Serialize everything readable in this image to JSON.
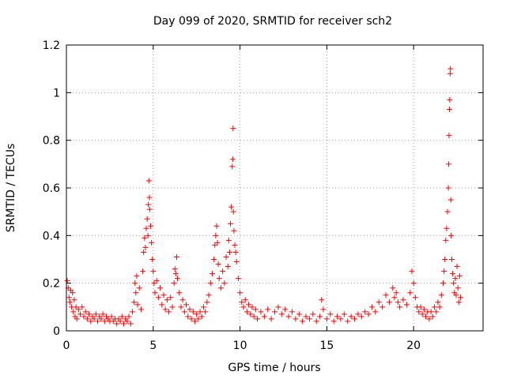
{
  "chart_data": {
    "type": "scatter",
    "title": "Day 099 of 2020, SRMTID for receiver sch2",
    "xlabel": "GPS time / hours",
    "ylabel": "SRMTID / TECUs",
    "xlim": [
      0,
      24
    ],
    "ylim": [
      0,
      1.2
    ],
    "xticks": [
      0,
      5,
      10,
      15,
      20
    ],
    "xtick_labels": [
      "0",
      "5",
      "10",
      "15",
      "20"
    ],
    "yticks": [
      0,
      0.2,
      0.4,
      0.6,
      0.8,
      1,
      1.2
    ],
    "ytick_labels": [
      "0",
      "0.2",
      "0.4",
      "0.6",
      "0.8",
      "1",
      "1.2"
    ],
    "grid": true,
    "marker": "+",
    "color": "#ff0000",
    "series": [
      {
        "name": "sch2",
        "points": [
          [
            0.05,
            0.21
          ],
          [
            0.1,
            0.18
          ],
          [
            0.15,
            0.14
          ],
          [
            0.2,
            0.12
          ],
          [
            0.25,
            0.17
          ],
          [
            0.3,
            0.1
          ],
          [
            0.35,
            0.16
          ],
          [
            0.4,
            0.08
          ],
          [
            0.45,
            0.13
          ],
          [
            0.5,
            0.06
          ],
          [
            0.55,
            0.1
          ],
          [
            0.6,
            0.05
          ],
          [
            0.7,
            0.09
          ],
          [
            0.8,
            0.07
          ],
          [
            0.9,
            0.1
          ],
          [
            1.0,
            0.06
          ],
          [
            1.1,
            0.08
          ],
          [
            1.2,
            0.05
          ],
          [
            1.3,
            0.07
          ],
          [
            1.4,
            0.04
          ],
          [
            1.5,
            0.06
          ],
          [
            1.6,
            0.05
          ],
          [
            1.7,
            0.07
          ],
          [
            1.8,
            0.04
          ],
          [
            1.9,
            0.06
          ],
          [
            2.0,
            0.05
          ],
          [
            2.1,
            0.07
          ],
          [
            2.2,
            0.04
          ],
          [
            2.3,
            0.06
          ],
          [
            2.4,
            0.05
          ],
          [
            2.5,
            0.04
          ],
          [
            2.6,
            0.06
          ],
          [
            2.7,
            0.04
          ],
          [
            2.8,
            0.05
          ],
          [
            2.9,
            0.03
          ],
          [
            3.0,
            0.05
          ],
          [
            3.1,
            0.04
          ],
          [
            3.2,
            0.06
          ],
          [
            3.3,
            0.03
          ],
          [
            3.4,
            0.05
          ],
          [
            3.5,
            0.04
          ],
          [
            3.6,
            0.06
          ],
          [
            3.7,
            0.03
          ],
          [
            3.8,
            0.08
          ],
          [
            3.9,
            0.12
          ],
          [
            3.95,
            0.2
          ],
          [
            4.0,
            0.16
          ],
          [
            4.05,
            0.23
          ],
          [
            4.1,
            0.11
          ],
          [
            4.2,
            0.18
          ],
          [
            4.3,
            0.09
          ],
          [
            4.4,
            0.25
          ],
          [
            4.45,
            0.33
          ],
          [
            4.5,
            0.39
          ],
          [
            4.55,
            0.35
          ],
          [
            4.6,
            0.43
          ],
          [
            4.65,
            0.47
          ],
          [
            4.7,
            0.4
          ],
          [
            4.72,
            0.53
          ],
          [
            4.75,
            0.63
          ],
          [
            4.78,
            0.56
          ],
          [
            4.8,
            0.51
          ],
          [
            4.85,
            0.44
          ],
          [
            4.9,
            0.37
          ],
          [
            4.95,
            0.3
          ],
          [
            5.0,
            0.25
          ],
          [
            5.05,
            0.2
          ],
          [
            5.1,
            0.16
          ],
          [
            5.2,
            0.21
          ],
          [
            5.3,
            0.14
          ],
          [
            5.4,
            0.18
          ],
          [
            5.5,
            0.11
          ],
          [
            5.6,
            0.15
          ],
          [
            5.7,
            0.09
          ],
          [
            5.8,
            0.13
          ],
          [
            5.9,
            0.08
          ],
          [
            6.0,
            0.14
          ],
          [
            6.1,
            0.1
          ],
          [
            6.2,
            0.2
          ],
          [
            6.25,
            0.26
          ],
          [
            6.3,
            0.24
          ],
          [
            6.35,
            0.31
          ],
          [
            6.4,
            0.22
          ],
          [
            6.5,
            0.16
          ],
          [
            6.6,
            0.1
          ],
          [
            6.7,
            0.13
          ],
          [
            6.8,
            0.08
          ],
          [
            6.9,
            0.11
          ],
          [
            7.0,
            0.06
          ],
          [
            7.1,
            0.09
          ],
          [
            7.2,
            0.05
          ],
          [
            7.3,
            0.08
          ],
          [
            7.4,
            0.04
          ],
          [
            7.5,
            0.07
          ],
          [
            7.6,
            0.05
          ],
          [
            7.7,
            0.08
          ],
          [
            7.8,
            0.06
          ],
          [
            7.9,
            0.1
          ],
          [
            8.0,
            0.08
          ],
          [
            8.1,
            0.12
          ],
          [
            8.2,
            0.15
          ],
          [
            8.3,
            0.2
          ],
          [
            8.4,
            0.24
          ],
          [
            8.5,
            0.3
          ],
          [
            8.55,
            0.36
          ],
          [
            8.6,
            0.4
          ],
          [
            8.65,
            0.44
          ],
          [
            8.7,
            0.37
          ],
          [
            8.75,
            0.28
          ],
          [
            8.8,
            0.22
          ],
          [
            8.9,
            0.18
          ],
          [
            9.0,
            0.25
          ],
          [
            9.1,
            0.2
          ],
          [
            9.2,
            0.31
          ],
          [
            9.3,
            0.27
          ],
          [
            9.35,
            0.38
          ],
          [
            9.4,
            0.33
          ],
          [
            9.45,
            0.45
          ],
          [
            9.5,
            0.52
          ],
          [
            9.55,
            0.69
          ],
          [
            9.58,
            0.72
          ],
          [
            9.6,
            0.85
          ],
          [
            9.62,
            0.5
          ],
          [
            9.65,
            0.42
          ],
          [
            9.7,
            0.36
          ],
          [
            9.75,
            0.33
          ],
          [
            9.8,
            0.29
          ],
          [
            9.9,
            0.22
          ],
          [
            10.0,
            0.16
          ],
          [
            10.1,
            0.12
          ],
          [
            10.2,
            0.1
          ],
          [
            10.3,
            0.13
          ],
          [
            10.4,
            0.08
          ],
          [
            10.5,
            0.11
          ],
          [
            10.6,
            0.07
          ],
          [
            10.7,
            0.1
          ],
          [
            10.8,
            0.06
          ],
          [
            10.9,
            0.09
          ],
          [
            11.0,
            0.05
          ],
          [
            11.2,
            0.08
          ],
          [
            11.4,
            0.06
          ],
          [
            11.6,
            0.09
          ],
          [
            11.8,
            0.05
          ],
          [
            12.0,
            0.08
          ],
          [
            12.2,
            0.1
          ],
          [
            12.4,
            0.07
          ],
          [
            12.6,
            0.09
          ],
          [
            12.8,
            0.06
          ],
          [
            13.0,
            0.08
          ],
          [
            13.2,
            0.05
          ],
          [
            13.4,
            0.07
          ],
          [
            13.6,
            0.04
          ],
          [
            13.8,
            0.06
          ],
          [
            14.0,
            0.05
          ],
          [
            14.2,
            0.07
          ],
          [
            14.4,
            0.04
          ],
          [
            14.6,
            0.06
          ],
          [
            14.7,
            0.13
          ],
          [
            14.8,
            0.09
          ],
          [
            15.0,
            0.05
          ],
          [
            15.2,
            0.07
          ],
          [
            15.4,
            0.04
          ],
          [
            15.6,
            0.06
          ],
          [
            15.8,
            0.05
          ],
          [
            16.0,
            0.07
          ],
          [
            16.2,
            0.04
          ],
          [
            16.4,
            0.06
          ],
          [
            16.6,
            0.05
          ],
          [
            16.8,
            0.07
          ],
          [
            17.0,
            0.06
          ],
          [
            17.2,
            0.08
          ],
          [
            17.4,
            0.07
          ],
          [
            17.6,
            0.1
          ],
          [
            17.8,
            0.08
          ],
          [
            18.0,
            0.12
          ],
          [
            18.2,
            0.1
          ],
          [
            18.4,
            0.15
          ],
          [
            18.6,
            0.12
          ],
          [
            18.8,
            0.18
          ],
          [
            18.9,
            0.14
          ],
          [
            19.0,
            0.16
          ],
          [
            19.1,
            0.12
          ],
          [
            19.2,
            0.1
          ],
          [
            19.4,
            0.13
          ],
          [
            19.6,
            0.11
          ],
          [
            19.8,
            0.16
          ],
          [
            19.9,
            0.25
          ],
          [
            20.0,
            0.2
          ],
          [
            20.1,
            0.14
          ],
          [
            20.2,
            0.1
          ],
          [
            20.3,
            0.08
          ],
          [
            20.4,
            0.1
          ],
          [
            20.5,
            0.07
          ],
          [
            20.6,
            0.09
          ],
          [
            20.7,
            0.06
          ],
          [
            20.8,
            0.08
          ],
          [
            20.9,
            0.05
          ],
          [
            21.0,
            0.08
          ],
          [
            21.1,
            0.06
          ],
          [
            21.2,
            0.1
          ],
          [
            21.3,
            0.08
          ],
          [
            21.4,
            0.12
          ],
          [
            21.5,
            0.1
          ],
          [
            21.6,
            0.15
          ],
          [
            21.7,
            0.2
          ],
          [
            21.75,
            0.25
          ],
          [
            21.8,
            0.3
          ],
          [
            21.85,
            0.38
          ],
          [
            21.9,
            0.43
          ],
          [
            21.95,
            0.5
          ],
          [
            22.0,
            0.6
          ],
          [
            22.02,
            0.7
          ],
          [
            22.04,
            0.82
          ],
          [
            22.06,
            0.93
          ],
          [
            22.08,
            0.97
          ],
          [
            22.1,
            1.08
          ],
          [
            22.12,
            1.1
          ],
          [
            22.14,
            0.55
          ],
          [
            22.16,
            0.4
          ],
          [
            22.2,
            0.3
          ],
          [
            22.25,
            0.24
          ],
          [
            22.3,
            0.2
          ],
          [
            22.35,
            0.16
          ],
          [
            22.4,
            0.22
          ],
          [
            22.45,
            0.15
          ],
          [
            22.5,
            0.27
          ],
          [
            22.55,
            0.18
          ],
          [
            22.6,
            0.12
          ],
          [
            22.65,
            0.23
          ],
          [
            22.7,
            0.14
          ]
        ]
      }
    ]
  }
}
